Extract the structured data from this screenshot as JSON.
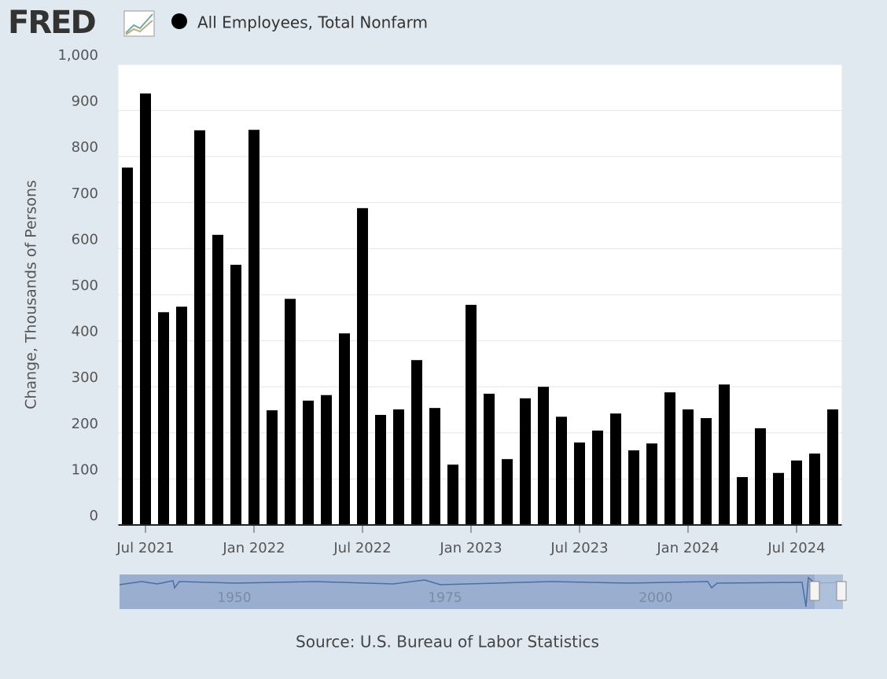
{
  "logo": "FRED",
  "chart_data": {
    "type": "bar",
    "title": "All Employees, Total Nonfarm",
    "y_label": "Change, Thousands of Persons",
    "source": "Source: U.S. Bureau of Labor Statistics",
    "color": "#000000",
    "grid": true,
    "categories": [
      null,
      "Jul 2021",
      null,
      null,
      null,
      null,
      null,
      "Jan 2022",
      null,
      null,
      null,
      null,
      null,
      "Jul 2022",
      null,
      null,
      null,
      null,
      null,
      "Jan 2023",
      null,
      null,
      null,
      null,
      null,
      "Jul 2023",
      null,
      null,
      null,
      null,
      null,
      "Jan 2024",
      null,
      null,
      null,
      null,
      null,
      "Jul 2024",
      null,
      null
    ],
    "values": [
      776,
      937,
      462,
      474,
      857,
      630,
      565,
      858,
      249,
      491,
      270,
      282,
      416,
      688,
      239,
      251,
      358,
      254,
      131,
      478,
      285,
      143,
      275,
      300,
      235,
      179,
      205,
      242,
      162,
      177,
      288,
      251,
      232,
      305,
      104,
      210,
      113,
      140,
      155,
      251
    ],
    "ylim": [
      0,
      1000
    ],
    "yticks": [
      0,
      100,
      200,
      300,
      400,
      500,
      600,
      700,
      800,
      900,
      {
        "value": 1000,
        "label": "1,000"
      }
    ],
    "navigator_labels": [
      "1950",
      "1975",
      "2000"
    ]
  }
}
